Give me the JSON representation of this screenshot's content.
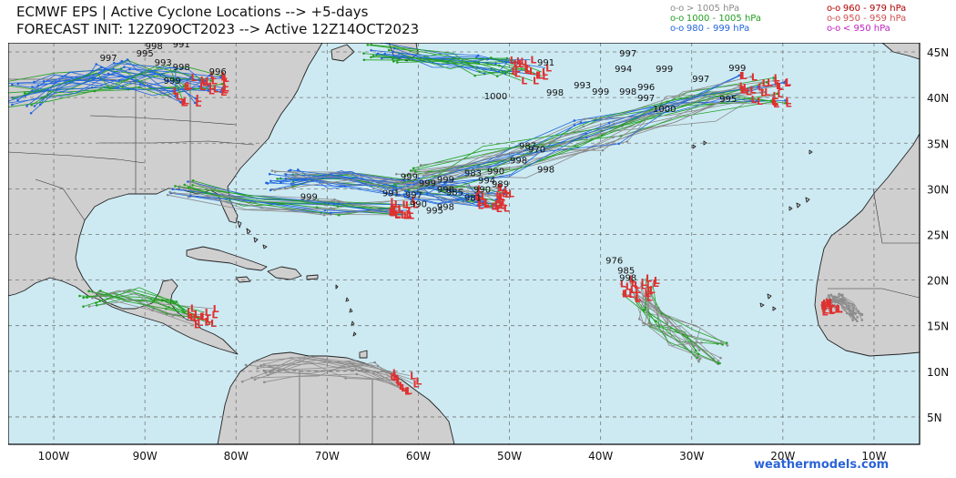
{
  "header": {
    "line1": "ECMWF EPS | Active Cyclone Locations --> +5-days",
    "line2": "FORECAST INIT: 12Z09OCT2023 --> Active 12Z14OCT2023"
  },
  "legend": [
    {
      "marker": "o-o",
      "label": "> 1005 hPa",
      "color": "#8c8c8c"
    },
    {
      "marker": "o-o",
      "label": "1000 - 1005 hPa",
      "color": "#22a022"
    },
    {
      "marker": "o-o",
      "label": "980 - 999 hPa",
      "color": "#2266dd"
    },
    {
      "marker": "o-o",
      "label": "960 - 979 hPa",
      "color": "#b00000"
    },
    {
      "marker": "o-o",
      "label": "950 - 959 hPa",
      "color": "#d05050"
    },
    {
      "marker": "o-o",
      "label": "< 950 hPa",
      "color": "#c020c0"
    }
  ],
  "credit": "weathermodels.com",
  "map": {
    "lon_range": [
      -105,
      -5
    ],
    "lat_range": [
      2,
      46
    ],
    "lat_ticks": [
      "45N",
      "40N",
      "35N",
      "30N",
      "25N",
      "20N",
      "15N",
      "10N",
      "5N"
    ],
    "lon_ticks": [
      "100W",
      "90W",
      "80W",
      "70W",
      "60W",
      "50W",
      "40W",
      "30W",
      "20W",
      "10W"
    ],
    "ocean_color": "#cdeaf3",
    "land_color": "#cfcfcf"
  },
  "pressure_labels": [
    {
      "text": "997",
      "lon": -94,
      "lat": 44
    },
    {
      "text": "995",
      "lon": -90,
      "lat": 44.5
    },
    {
      "text": "998",
      "lon": -89,
      "lat": 45.3
    },
    {
      "text": "991",
      "lon": -86,
      "lat": 45.5
    },
    {
      "text": "993",
      "lon": -88,
      "lat": 43.5
    },
    {
      "text": "998",
      "lon": -86,
      "lat": 43.0
    },
    {
      "text": "996",
      "lon": -82,
      "lat": 42.5
    },
    {
      "text": "999",
      "lon": -87,
      "lat": 41.5
    },
    {
      "text": "991",
      "lon": -51,
      "lat": 46.0
    },
    {
      "text": "991",
      "lon": -46,
      "lat": 43.5
    },
    {
      "text": "997",
      "lon": -37,
      "lat": 44.5
    },
    {
      "text": "994",
      "lon": -37.5,
      "lat": 42.8
    },
    {
      "text": "999",
      "lon": -33,
      "lat": 42.8
    },
    {
      "text": "993",
      "lon": -42,
      "lat": 41.0
    },
    {
      "text": "998",
      "lon": -45,
      "lat": 40.2
    },
    {
      "text": "999",
      "lon": -40,
      "lat": 40.3
    },
    {
      "text": "998",
      "lon": -37,
      "lat": 40.3
    },
    {
      "text": "996",
      "lon": -35,
      "lat": 40.8
    },
    {
      "text": "997",
      "lon": -35,
      "lat": 39.6
    },
    {
      "text": "997",
      "lon": -29,
      "lat": 41.7
    },
    {
      "text": "999",
      "lon": -25,
      "lat": 42.9
    },
    {
      "text": "995",
      "lon": -26,
      "lat": 39.5
    },
    {
      "text": "1000",
      "lon": -51.5,
      "lat": 39.8
    },
    {
      "text": "1000",
      "lon": -33,
      "lat": 38.4
    },
    {
      "text": "987",
      "lon": -48,
      "lat": 34.4
    },
    {
      "text": "970",
      "lon": -47,
      "lat": 34.0
    },
    {
      "text": "998",
      "lon": -49,
      "lat": 32.8
    },
    {
      "text": "998",
      "lon": -46,
      "lat": 31.8
    },
    {
      "text": "999",
      "lon": -61,
      "lat": 31.0
    },
    {
      "text": "990",
      "lon": -51.5,
      "lat": 31.6
    },
    {
      "text": "983",
      "lon": -54,
      "lat": 31.4
    },
    {
      "text": "994",
      "lon": -52.5,
      "lat": 30.6
    },
    {
      "text": "989",
      "lon": -51,
      "lat": 30.2
    },
    {
      "text": "999",
      "lon": -57,
      "lat": 30.7
    },
    {
      "text": "999",
      "lon": -59,
      "lat": 30.3
    },
    {
      "text": "998",
      "lon": -57,
      "lat": 29.6
    },
    {
      "text": "990",
      "lon": -53,
      "lat": 29.6
    },
    {
      "text": "985",
      "lon": -56,
      "lat": 29.3
    },
    {
      "text": "981",
      "lon": -54,
      "lat": 28.7
    },
    {
      "text": "999",
      "lon": -72,
      "lat": 28.8
    },
    {
      "text": "991",
      "lon": -63,
      "lat": 29.2
    },
    {
      "text": "997",
      "lon": -60.5,
      "lat": 29.0
    },
    {
      "text": "990",
      "lon": -60,
      "lat": 28.0
    },
    {
      "text": "998",
      "lon": -57,
      "lat": 27.7
    },
    {
      "text": "995",
      "lon": -58.2,
      "lat": 27.3
    },
    {
      "text": "976",
      "lon": -38.5,
      "lat": 21.8
    },
    {
      "text": "985",
      "lon": -37.2,
      "lat": 20.7
    },
    {
      "text": "998",
      "lon": -37,
      "lat": 19.9
    }
  ]
}
